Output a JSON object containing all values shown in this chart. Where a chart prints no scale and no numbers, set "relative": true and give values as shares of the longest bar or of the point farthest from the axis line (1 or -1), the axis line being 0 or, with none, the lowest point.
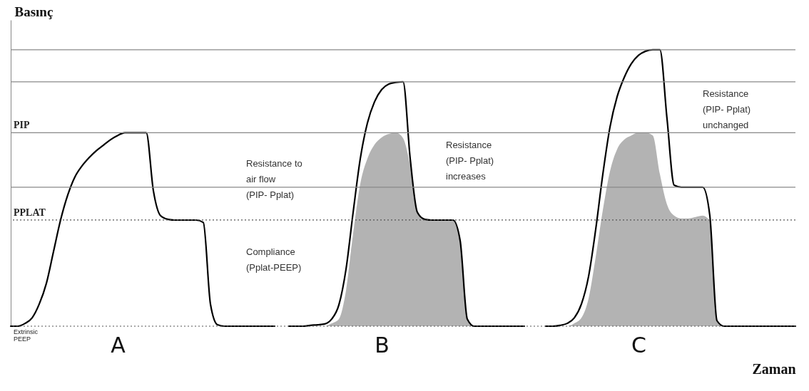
{
  "chart_data": {
    "type": "line",
    "relative": true,
    "xlabel": "Zaman",
    "ylabel": "Basınç",
    "categories": [
      null,
      null,
      null,
      null,
      null,
      null,
      null,
      null,
      null,
      null,
      null,
      null,
      null,
      null,
      null,
      "A",
      null,
      null,
      null,
      null,
      null,
      null,
      null,
      null,
      null,
      null,
      null,
      null,
      null,
      null,
      null,
      null,
      null,
      null,
      null,
      null,
      null,
      null,
      null,
      null,
      null,
      null,
      null,
      null,
      null,
      null,
      null,
      null,
      null,
      null,
      null,
      null,
      "B",
      null,
      null,
      null,
      null,
      null,
      null,
      null,
      null,
      null,
      null,
      null,
      null,
      null,
      null,
      null,
      null,
      null,
      null,
      null,
      null,
      null,
      null,
      null,
      null,
      null,
      null,
      null,
      null,
      null,
      null,
      null,
      null,
      null,
      null,
      null,
      "C",
      null,
      null,
      null,
      null,
      null,
      null,
      null,
      null,
      null,
      null,
      null,
      null,
      null,
      null,
      null,
      null,
      null,
      null,
      null,
      null,
      null,
      null
    ],
    "series": [
      {
        "type": "area",
        "color": "#b3b3b3",
        "values": [
          null,
          null,
          null,
          null,
          null,
          null,
          null,
          null,
          null,
          null,
          null,
          null,
          null,
          null,
          null,
          null,
          null,
          null,
          null,
          null,
          null,
          null,
          null,
          null,
          null,
          null,
          null,
          null,
          null,
          null,
          null,
          null,
          null,
          null,
          null,
          null,
          null,
          null,
          null,
          0,
          0,
          0,
          0,
          0,
          0,
          0.01,
          0.026,
          0.129,
          0.335,
          0.515,
          0.606,
          0.657,
          0.683,
          0.696,
          0.7,
          0.68,
          0.58,
          0.412,
          0.387,
          0.384,
          0.384,
          0.384,
          0.384,
          0.31,
          0.026,
          0,
          0,
          0,
          0,
          0,
          0,
          0,
          0,
          null,
          null,
          null,
          null,
          null,
          null,
          null,
          null,
          null,
          null,
          null,
          null,
          null,
          null,
          null,
          null,
          null,
          null,
          null,
          null,
          null,
          null,
          null,
          null,
          null,
          null,
          null,
          null,
          null,
          null,
          null,
          null,
          null,
          null,
          null,
          null,
          null,
          null
        ]
      },
      {
        "type": "area",
        "color": "#b3b3b3",
        "values": [
          null,
          null,
          null,
          null,
          null,
          null,
          null,
          null,
          null,
          null,
          null,
          null,
          null,
          null,
          null,
          null,
          null,
          null,
          null,
          null,
          null,
          null,
          null,
          null,
          null,
          null,
          null,
          null,
          null,
          null,
          null,
          null,
          null,
          null,
          null,
          null,
          null,
          null,
          null,
          null,
          null,
          null,
          null,
          null,
          null,
          null,
          null,
          null,
          null,
          null,
          null,
          null,
          null,
          null,
          null,
          null,
          null,
          null,
          null,
          null,
          null,
          null,
          null,
          null,
          null,
          null,
          null,
          null,
          null,
          null,
          null,
          null,
          null,
          null,
          null,
          0,
          0,
          0,
          0,
          0.01,
          0.03,
          0.1,
          0.25,
          0.42,
          0.56,
          0.64,
          0.675,
          0.69,
          0.7,
          0.7,
          0.69,
          0.55,
          0.44,
          0.4,
          0.39,
          0.39,
          0.395,
          0.4,
          0.38,
          0.02,
          0,
          0,
          0,
          0,
          0,
          0,
          0,
          0,
          0,
          0,
          0
        ]
      },
      {
        "color": "#000000",
        "values": [
          0,
          0,
          0.01,
          0.03,
          0.08,
          0.155,
          0.27,
          0.385,
          0.475,
          0.54,
          0.58,
          0.61,
          0.635,
          0.655,
          0.675,
          0.69,
          0.7,
          0.7,
          0.7,
          0.7,
          0.49,
          0.4,
          0.387,
          0.384,
          0.384,
          0.384,
          0.384,
          0.375,
          0.08,
          0.005,
          0,
          0,
          0,
          0,
          0,
          0,
          0,
          0,
          null,
          null,
          null,
          null,
          null,
          null,
          null,
          null,
          null,
          null,
          null,
          null,
          null,
          null,
          null,
          null,
          null,
          null,
          null,
          null,
          null,
          null,
          null,
          null,
          null,
          null,
          null,
          null,
          null,
          null,
          null,
          null,
          null,
          null,
          null,
          null,
          null,
          null,
          null,
          null,
          null,
          null,
          null,
          null,
          null,
          null,
          null,
          null,
          null,
          null,
          null,
          null,
          null,
          null,
          null,
          null,
          null,
          null,
          null,
          null,
          null,
          null,
          null,
          null,
          null,
          null,
          null,
          null,
          null,
          null,
          null,
          null,
          null
        ]
      },
      {
        "color": "#000000",
        "values": [
          null,
          null,
          null,
          null,
          null,
          null,
          null,
          null,
          null,
          null,
          null,
          null,
          null,
          null,
          null,
          null,
          null,
          null,
          null,
          null,
          null,
          null,
          null,
          null,
          null,
          null,
          null,
          null,
          null,
          null,
          null,
          null,
          null,
          null,
          null,
          null,
          null,
          null,
          null,
          0,
          0,
          0,
          0.003,
          0.005,
          0.008,
          0.026,
          0.077,
          0.206,
          0.412,
          0.606,
          0.735,
          0.812,
          0.856,
          0.876,
          0.882,
          0.884,
          0.606,
          0.412,
          0.387,
          0.384,
          0.384,
          0.384,
          0.384,
          0.31,
          0.026,
          0,
          0,
          0,
          0,
          0,
          0,
          0,
          0,
          null,
          null,
          null,
          null,
          null,
          null,
          null,
          null,
          null,
          null,
          null,
          null,
          null,
          null,
          null,
          null,
          null,
          null,
          null,
          null,
          null,
          null,
          null,
          null,
          null,
          null,
          null,
          null,
          null,
          null,
          null,
          null,
          null,
          null,
          null,
          null,
          null,
          null
        ]
      },
      {
        "color": "#000000",
        "values": [
          null,
          null,
          null,
          null,
          null,
          null,
          null,
          null,
          null,
          null,
          null,
          null,
          null,
          null,
          null,
          null,
          null,
          null,
          null,
          null,
          null,
          null,
          null,
          null,
          null,
          null,
          null,
          null,
          null,
          null,
          null,
          null,
          null,
          null,
          null,
          null,
          null,
          null,
          null,
          null,
          null,
          null,
          null,
          null,
          null,
          null,
          null,
          null,
          null,
          null,
          null,
          null,
          null,
          null,
          null,
          null,
          null,
          null,
          null,
          null,
          null,
          null,
          null,
          null,
          null,
          null,
          null,
          null,
          null,
          null,
          null,
          null,
          null,
          null,
          null,
          0,
          0,
          0.003,
          0.01,
          0.03,
          0.08,
          0.18,
          0.35,
          0.55,
          0.72,
          0.83,
          0.9,
          0.95,
          0.98,
          0.995,
          1,
          1,
          0.75,
          0.51,
          0.503,
          0.503,
          0.503,
          0.503,
          0.4,
          0.02,
          0,
          0,
          0,
          0,
          0,
          0,
          0,
          0,
          0,
          0,
          0
        ]
      }
    ],
    "ref_lines": [
      {
        "axis": "y",
        "value": 0.7,
        "label": "PIP",
        "color": "#888888"
      },
      {
        "axis": "y",
        "value": 0.384,
        "label": "PPLAT",
        "line_style": "dotted",
        "color": "#555555"
      },
      {
        "axis": "y",
        "value": 0.884,
        "color": "#888888"
      },
      {
        "axis": "y",
        "value": 1,
        "color": "#888888"
      },
      {
        "axis": "y",
        "value": 0.503,
        "color": "#888888"
      },
      {
        "axis": "y",
        "value": 0,
        "label": "Extrinsic PEEP",
        "line_style": "dotted",
        "color": "#555555"
      }
    ],
    "annotations": [
      "Resistance to air flow (PIP- Pplat)",
      "Compliance (Pplat-PEEP)",
      "Resistance (PIP- Pplat) increases",
      "Resistance (PIP- Pplat) unchanged"
    ]
  }
}
